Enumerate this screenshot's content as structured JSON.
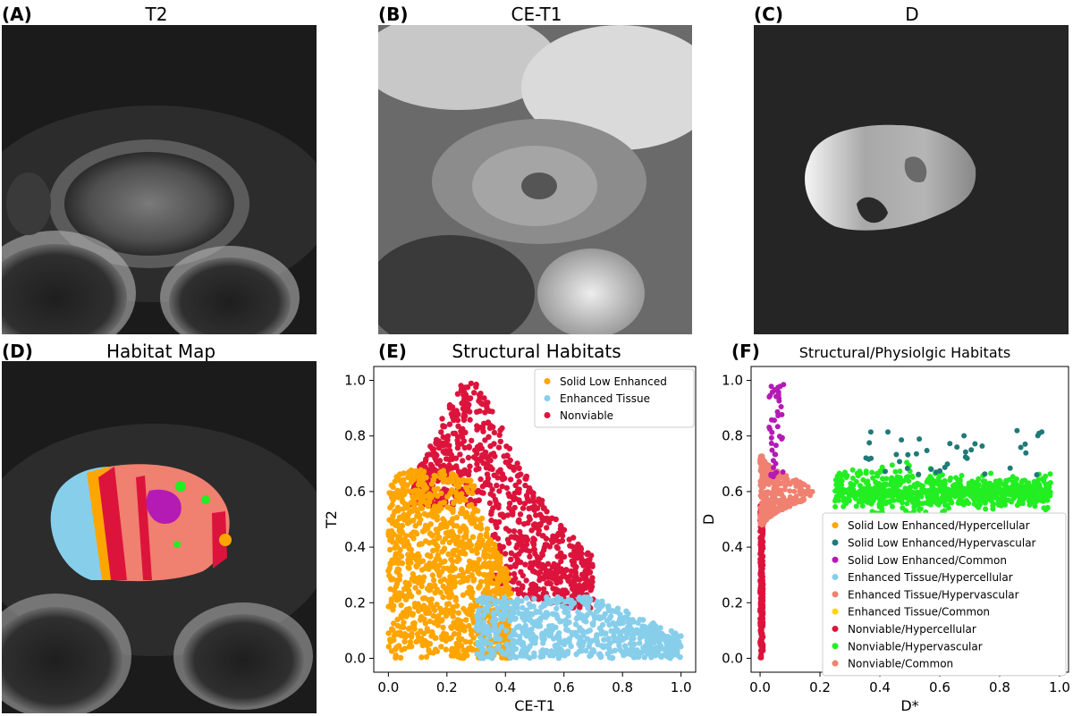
{
  "panels": {
    "a": {
      "label": "(A)",
      "title": "T2"
    },
    "b": {
      "label": "(B)",
      "title": "CE-T1"
    },
    "c": {
      "label": "(C)",
      "title": "D"
    },
    "d": {
      "label": "(D)",
      "title": "Habitat Map"
    },
    "e": {
      "label": "(E)",
      "title": "Structural Habitats"
    },
    "f": {
      "label": "(F)",
      "title": "Structural/Physiolgic Habitats"
    }
  },
  "chart_data": [
    {
      "type": "scatter",
      "title": "Structural Habitats",
      "xlabel": "CE-T1",
      "ylabel": "T2",
      "xlim": [
        -0.05,
        1.05
      ],
      "ylim": [
        -0.05,
        1.05
      ],
      "xticks": [
        "0.0",
        "0.2",
        "0.4",
        "0.6",
        "0.8",
        "1.0"
      ],
      "yticks": [
        "0.0",
        "0.2",
        "0.4",
        "0.6",
        "0.8",
        "1.0"
      ],
      "legend_position": "top-right",
      "grid": false,
      "series": [
        {
          "name": "Solid Low Enhanced",
          "color": "#FFA500",
          "x_range": [
            0.0,
            0.42
          ],
          "y_range": [
            0.0,
            0.7
          ]
        },
        {
          "name": "Enhanced Tissue",
          "color": "#87CEEB",
          "x_range": [
            0.3,
            1.0
          ],
          "y_range": [
            0.0,
            0.23
          ]
        },
        {
          "name": "Nonviable",
          "color": "#DC143C",
          "x_range": [
            0.05,
            0.72
          ],
          "y_range": [
            0.18,
            1.0
          ]
        }
      ]
    },
    {
      "type": "scatter",
      "title": "Structural/Physiolgic Habitats",
      "xlabel": "D*",
      "ylabel": "D",
      "xlim": [
        -0.03,
        1.03
      ],
      "ylim": [
        -0.05,
        1.05
      ],
      "xticks": [
        "0.0",
        "0.2",
        "0.4",
        "0.6",
        "0.8",
        "1.0"
      ],
      "yticks": [
        "0.0",
        "0.2",
        "0.4",
        "0.6",
        "0.8",
        "1.0"
      ],
      "legend_position": "lower-right",
      "grid": false,
      "series": [
        {
          "name": "Solid Low Enhanced/Hypercellular",
          "color": "#FFA500"
        },
        {
          "name": "Solid Low Enhanced/Hypervascular",
          "color": "#1F7A78"
        },
        {
          "name": "Solid Low Enhanced/Common",
          "color": "#B41AB4"
        },
        {
          "name": "Enhanced Tissue/Hypercellular",
          "color": "#87CEEB"
        },
        {
          "name": "Enhanced Tissue/Hypervascular",
          "color": "#F08070"
        },
        {
          "name": "Enhanced Tissue/Common",
          "color": "#FFD700"
        },
        {
          "name": "Nonviable/Hypercellular",
          "color": "#DC143C"
        },
        {
          "name": "Nonviable/Hypervascular",
          "color": "#22EE22"
        },
        {
          "name": "Nonviable/Common",
          "color": "#F08070"
        }
      ]
    }
  ]
}
